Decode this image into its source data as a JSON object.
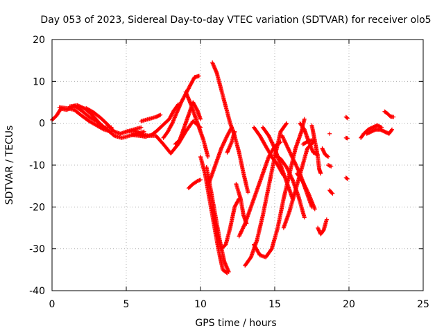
{
  "chart_data": {
    "type": "scatter",
    "title": "Day 053 of 2023, Sidereal Day-to-day VTEC variation (SDTVAR) for receiver olo5",
    "xlabel": "GPS time / hours",
    "ylabel": "SDTVAR / TECUs",
    "xlim": [
      0,
      25
    ],
    "ylim": [
      -40,
      20
    ],
    "xticks": [
      0,
      5,
      10,
      15,
      20,
      25
    ],
    "yticks": [
      -40,
      -30,
      -20,
      -10,
      0,
      10,
      20
    ],
    "grid": true,
    "marker": "+",
    "color": "#ff0000",
    "series": [
      {
        "name": "s1",
        "points": [
          [
            0.0,
            0.8
          ],
          [
            0.3,
            1.8
          ],
          [
            0.6,
            3.5
          ],
          [
            1.0,
            3.2
          ],
          [
            1.5,
            4.2
          ],
          [
            2.0,
            3.0
          ],
          [
            2.5,
            1.5
          ],
          [
            3.0,
            0.5
          ],
          [
            3.5,
            -1.0
          ],
          [
            4.0,
            -1.0
          ]
        ]
      },
      {
        "name": "s2",
        "points": [
          [
            0.5,
            3.8
          ],
          [
            1.0,
            3.6
          ],
          [
            1.5,
            3.2
          ],
          [
            2.0,
            1.8
          ],
          [
            2.5,
            0.5
          ],
          [
            3.0,
            -0.5
          ],
          [
            3.5,
            -1.5
          ],
          [
            4.0,
            -2.0
          ]
        ]
      },
      {
        "name": "s3",
        "points": [
          [
            1.2,
            4.0
          ],
          [
            1.7,
            4.3
          ],
          [
            2.2,
            3.5
          ],
          [
            2.7,
            2.0
          ],
          [
            3.2,
            0.0
          ],
          [
            3.7,
            -1.5
          ],
          [
            4.2,
            -3.0
          ],
          [
            4.7,
            -3.5
          ],
          [
            5.2,
            -3.0
          ],
          [
            5.7,
            -2.5
          ],
          [
            6.2,
            -2.0
          ]
        ]
      },
      {
        "name": "s4",
        "points": [
          [
            2.3,
            3.6
          ],
          [
            2.8,
            2.6
          ],
          [
            3.3,
            1.2
          ],
          [
            3.8,
            -0.5
          ],
          [
            4.2,
            -2.0
          ],
          [
            4.6,
            -2.5
          ],
          [
            5.0,
            -2.0
          ],
          [
            5.5,
            -1.5
          ],
          [
            6.0,
            -1.0
          ]
        ]
      },
      {
        "name": "s5",
        "points": [
          [
            5.0,
            -2.0
          ],
          [
            5.5,
            -1.8
          ],
          [
            6.0,
            -2.5
          ],
          [
            6.5,
            -3.0
          ],
          [
            7.0,
            -3.0
          ],
          [
            7.5,
            -5.0
          ],
          [
            8.0,
            -7.2
          ],
          [
            8.5,
            -5.0
          ],
          [
            9.0,
            -2.0
          ],
          [
            9.5,
            0.5
          ],
          [
            10.0,
            -1.0
          ]
        ]
      },
      {
        "name": "s6",
        "points": [
          [
            5.4,
            -2.8
          ],
          [
            5.9,
            -3.0
          ],
          [
            6.3,
            -3.2
          ],
          [
            6.7,
            -2.8
          ],
          [
            7.0,
            -2.0
          ],
          [
            7.3,
            -1.0
          ],
          [
            7.6,
            0.0
          ],
          [
            7.9,
            1.0
          ],
          [
            8.2,
            3.0
          ],
          [
            8.5,
            4.5
          ]
        ]
      },
      {
        "name": "s7",
        "points": [
          [
            6.0,
            0.5
          ],
          [
            6.5,
            1.0
          ],
          [
            7.0,
            1.5
          ],
          [
            7.3,
            2.0
          ]
        ]
      },
      {
        "name": "s8",
        "points": [
          [
            7.5,
            -3.5
          ],
          [
            7.8,
            -2.0
          ],
          [
            8.1,
            0.0
          ],
          [
            8.4,
            2.5
          ],
          [
            8.7,
            5.0
          ],
          [
            9.0,
            7.0
          ],
          [
            9.3,
            9.0
          ],
          [
            9.6,
            11.0
          ],
          [
            9.9,
            11.3
          ]
        ]
      },
      {
        "name": "s9",
        "points": [
          [
            8.3,
            -5.0
          ],
          [
            8.6,
            -4.0
          ],
          [
            8.9,
            -1.0
          ],
          [
            9.2,
            2.0
          ],
          [
            9.5,
            5.0
          ],
          [
            9.8,
            3.0
          ],
          [
            10.0,
            1.0
          ]
        ]
      },
      {
        "name": "s10",
        "points": [
          [
            9.0,
            7.5
          ],
          [
            9.3,
            5.0
          ],
          [
            9.6,
            2.0
          ],
          [
            9.9,
            -1.0
          ],
          [
            10.2,
            -4.0
          ],
          [
            10.5,
            -8.0
          ]
        ]
      },
      {
        "name": "s11",
        "points": [
          [
            9.2,
            -15.5
          ],
          [
            9.5,
            -14.5
          ],
          [
            9.8,
            -13.8
          ],
          [
            10.0,
            -13.5
          ]
        ]
      },
      {
        "name": "s12",
        "points": [
          [
            10.0,
            -8.0
          ],
          [
            10.3,
            -12.0
          ],
          [
            10.6,
            -18.0
          ],
          [
            10.9,
            -24.0
          ],
          [
            11.2,
            -30.0
          ],
          [
            11.5,
            -35.0
          ],
          [
            11.8,
            -35.8
          ]
        ]
      },
      {
        "name": "s13",
        "points": [
          [
            10.4,
            -10.5
          ],
          [
            10.7,
            -16.0
          ],
          [
            11.0,
            -22.0
          ],
          [
            11.3,
            -28.0
          ],
          [
            11.6,
            -33.0
          ],
          [
            11.9,
            -35.5
          ]
        ]
      },
      {
        "name": "s14",
        "points": [
          [
            10.8,
            -20.0
          ],
          [
            11.1,
            -26.0
          ],
          [
            11.4,
            -30.0
          ],
          [
            11.7,
            -29.0
          ],
          [
            12.0,
            -25.0
          ],
          [
            12.3,
            -20.0
          ],
          [
            12.6,
            -18.0
          ]
        ]
      },
      {
        "name": "s15",
        "points": [
          [
            10.6,
            -14.0
          ],
          [
            11.0,
            -10.0
          ],
          [
            11.4,
            -6.0
          ],
          [
            11.8,
            -3.0
          ],
          [
            12.1,
            -1.0
          ]
        ]
      },
      {
        "name": "s16",
        "points": [
          [
            10.8,
            14.5
          ],
          [
            11.1,
            12.0
          ],
          [
            11.4,
            8.0
          ],
          [
            11.7,
            4.0
          ],
          [
            12.0,
            0.0
          ],
          [
            12.3,
            -3.0
          ],
          [
            12.6,
            -7.0
          ],
          [
            12.9,
            -12.0
          ],
          [
            13.2,
            -16.5
          ]
        ]
      },
      {
        "name": "s17",
        "points": [
          [
            11.8,
            -7.0
          ],
          [
            12.1,
            -4.5
          ],
          [
            12.3,
            -2.0
          ]
        ]
      },
      {
        "name": "s18",
        "points": [
          [
            12.4,
            -14.5
          ],
          [
            12.7,
            -18.0
          ],
          [
            12.9,
            -22.0
          ],
          [
            13.1,
            -24.0
          ]
        ]
      },
      {
        "name": "s19",
        "points": [
          [
            12.6,
            -27.0
          ],
          [
            13.0,
            -24.0
          ],
          [
            13.4,
            -20.0
          ],
          [
            13.8,
            -16.0
          ],
          [
            14.2,
            -12.0
          ],
          [
            14.6,
            -8.0
          ],
          [
            15.0,
            -5.5
          ],
          [
            15.4,
            -4.5
          ]
        ]
      },
      {
        "name": "s20",
        "points": [
          [
            13.0,
            -34.0
          ],
          [
            13.4,
            -32.0
          ],
          [
            13.8,
            -28.0
          ],
          [
            14.2,
            -22.0
          ],
          [
            14.6,
            -15.0
          ],
          [
            15.0,
            -8.0
          ],
          [
            15.4,
            -2.0
          ],
          [
            15.8,
            0.0
          ]
        ]
      },
      {
        "name": "s21",
        "points": [
          [
            13.6,
            -29.0
          ],
          [
            14.0,
            -31.5
          ],
          [
            14.4,
            -32.0
          ],
          [
            14.8,
            -30.0
          ],
          [
            15.2,
            -25.0
          ],
          [
            15.6,
            -18.0
          ],
          [
            16.0,
            -12.0
          ],
          [
            16.4,
            -6.0
          ],
          [
            16.8,
            -2.0
          ],
          [
            17.0,
            1.0
          ]
        ]
      },
      {
        "name": "s22",
        "points": [
          [
            13.6,
            -1.0
          ],
          [
            14.0,
            -3.0
          ],
          [
            14.4,
            -5.5
          ],
          [
            14.8,
            -8.0
          ],
          [
            15.2,
            -10.0
          ],
          [
            15.6,
            -12.5
          ]
        ]
      },
      {
        "name": "s23",
        "points": [
          [
            14.2,
            -1.0
          ],
          [
            14.6,
            -3.0
          ],
          [
            15.0,
            -6.0
          ],
          [
            15.4,
            -10.0
          ],
          [
            15.8,
            -14.0
          ],
          [
            16.2,
            -18.0
          ]
        ]
      },
      {
        "name": "s24",
        "points": [
          [
            15.6,
            -25.0
          ],
          [
            16.0,
            -21.0
          ],
          [
            16.4,
            -16.0
          ],
          [
            16.8,
            -11.0
          ],
          [
            17.2,
            -6.0
          ],
          [
            17.6,
            -4.5
          ]
        ]
      },
      {
        "name": "s25",
        "points": [
          [
            15.0,
            -7.5
          ],
          [
            15.4,
            -8.5
          ],
          [
            15.8,
            -10.5
          ],
          [
            16.2,
            -13.5
          ],
          [
            16.6,
            -17.5
          ],
          [
            17.0,
            -22.5
          ]
        ]
      },
      {
        "name": "s26",
        "points": [
          [
            15.5,
            -3.0
          ],
          [
            15.9,
            -6.0
          ],
          [
            16.3,
            -9.0
          ],
          [
            16.7,
            -12.0
          ],
          [
            17.1,
            -16.0
          ],
          [
            17.5,
            -20.0
          ]
        ]
      },
      {
        "name": "s27",
        "points": [
          [
            16.5,
            -12.0
          ],
          [
            16.9,
            -14.0
          ],
          [
            17.3,
            -17.0
          ],
          [
            17.7,
            -20.5
          ]
        ]
      },
      {
        "name": "s28",
        "points": [
          [
            16.9,
            -5.0
          ],
          [
            17.3,
            -4.2
          ],
          [
            17.7,
            -4.0
          ]
        ]
      },
      {
        "name": "s29",
        "points": [
          [
            16.7,
            0.0
          ],
          [
            17.0,
            -1.5
          ],
          [
            17.3,
            -4.5
          ],
          [
            17.6,
            -7.0
          ],
          [
            17.9,
            -7.5
          ]
        ]
      },
      {
        "name": "s30",
        "points": [
          [
            17.5,
            -0.5
          ],
          [
            17.8,
            -6.0
          ],
          [
            17.9,
            -8.0
          ],
          [
            18.0,
            -11.0
          ],
          [
            18.1,
            -12.0
          ]
        ]
      },
      {
        "name": "s31",
        "points": [
          [
            17.9,
            -25.0
          ],
          [
            18.1,
            -26.5
          ],
          [
            18.3,
            -25.5
          ],
          [
            18.5,
            -23.0
          ]
        ]
      },
      {
        "name": "s32",
        "points": [
          [
            18.2,
            -6.0
          ],
          [
            18.4,
            -7.5
          ],
          [
            18.6,
            -8.0
          ]
        ]
      },
      {
        "name": "s33",
        "points": [
          [
            18.6,
            -10.0
          ],
          [
            18.8,
            -10.3
          ]
        ]
      },
      {
        "name": "s34",
        "points": [
          [
            18.7,
            -16.0
          ],
          [
            18.8,
            -16.5
          ],
          [
            18.9,
            -16.8
          ]
        ]
      },
      {
        "name": "s35",
        "points": [
          [
            18.7,
            -2.5
          ]
        ]
      },
      {
        "name": "s36",
        "points": [
          [
            19.8,
            1.5
          ],
          [
            19.9,
            1.2
          ]
        ]
      },
      {
        "name": "s37",
        "points": [
          [
            19.8,
            -3.5
          ],
          [
            19.9,
            -3.6
          ]
        ]
      },
      {
        "name": "s38",
        "points": [
          [
            19.8,
            -13.0
          ],
          [
            19.9,
            -13.3
          ]
        ]
      },
      {
        "name": "s39",
        "points": [
          [
            20.8,
            -3.5
          ],
          [
            21.0,
            -2.5
          ],
          [
            21.3,
            -1.5
          ],
          [
            21.6,
            -1.0
          ],
          [
            21.9,
            -0.5
          ],
          [
            22.2,
            -1.0
          ]
        ]
      },
      {
        "name": "s40",
        "points": [
          [
            21.2,
            -2.5
          ],
          [
            21.5,
            -2.0
          ],
          [
            21.8,
            -1.5
          ],
          [
            22.1,
            -1.5
          ],
          [
            22.4,
            -2.0
          ],
          [
            22.7,
            -2.5
          ],
          [
            22.9,
            -1.5
          ]
        ]
      },
      {
        "name": "s41",
        "points": [
          [
            22.4,
            2.8
          ],
          [
            22.6,
            2.3
          ],
          [
            22.8,
            1.6
          ],
          [
            23.0,
            1.5
          ]
        ]
      }
    ]
  }
}
